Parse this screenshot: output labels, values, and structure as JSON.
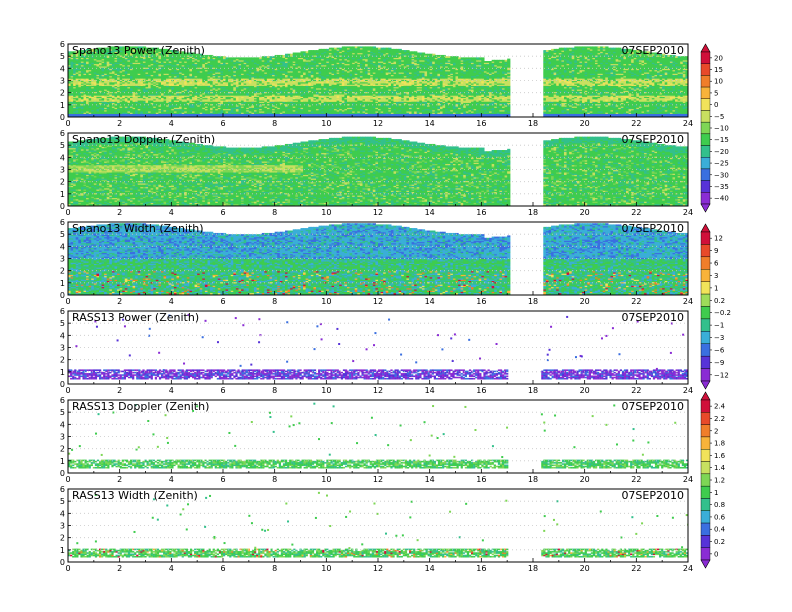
{
  "page": {
    "date_label": "07SEP2010"
  },
  "chart_data": [
    {
      "type": "heatmap",
      "title": "Spano13 Power (Zenith)",
      "date": "07SEP2010",
      "xlim": [
        0,
        24
      ],
      "ylim": [
        0,
        6
      ],
      "x_ticks": [
        "0",
        "2",
        "4",
        "6",
        "8",
        "10",
        "12",
        "14",
        "16",
        "18",
        "20",
        "22",
        "24"
      ],
      "y_ticks": [
        "0",
        "1",
        "2",
        "3",
        "4",
        "5",
        "6"
      ],
      "data_gap": [
        17,
        18.3
      ],
      "top_of_data_km": 5.3,
      "dominant": "green",
      "scale": "A",
      "notes": "broad green field with yellow layers between 1 and 4 km"
    },
    {
      "type": "heatmap",
      "title": "Spano13 Doppler (Zenith)",
      "date": "07SEP2010",
      "xlim": [
        0,
        24
      ],
      "ylim": [
        0,
        6
      ],
      "x_ticks": [
        "0",
        "2",
        "4",
        "6",
        "8",
        "10",
        "12",
        "14",
        "16",
        "18",
        "20",
        "22",
        "24"
      ],
      "y_ticks": [
        "0",
        "1",
        "2",
        "3",
        "4",
        "5",
        "6"
      ],
      "data_gap": [
        17,
        18.3
      ],
      "top_of_data_km": 5.2,
      "dominant": "green",
      "scale": "A"
    },
    {
      "type": "heatmap",
      "title": "Spano13 Width (Zenith)",
      "date": "07SEP2010",
      "xlim": [
        0,
        24
      ],
      "ylim": [
        0,
        6
      ],
      "x_ticks": [
        "0",
        "2",
        "4",
        "6",
        "8",
        "10",
        "12",
        "14",
        "16",
        "18",
        "20",
        "22",
        "24"
      ],
      "y_ticks": [
        "0",
        "1",
        "2",
        "3",
        "4",
        "5",
        "6"
      ],
      "data_gap": [
        17,
        18.3
      ],
      "top_of_data_km": 5.4,
      "dominant": "blue/green",
      "scale": "B",
      "notes": "red/orange cells near 0.5–2 km"
    },
    {
      "type": "heatmap",
      "title": "RASS13 Power (Zenith)",
      "date": "07SEP2010",
      "xlim": [
        0,
        24
      ],
      "ylim": [
        0,
        6
      ],
      "x_ticks": [
        "0",
        "2",
        "4",
        "6",
        "8",
        "10",
        "12",
        "14",
        "16",
        "18",
        "20",
        "22",
        "24"
      ],
      "y_ticks": [
        "0",
        "1",
        "2",
        "3",
        "4",
        "5",
        "6"
      ],
      "data_gap": [
        17,
        18.3
      ],
      "band_km": [
        0.4,
        1.1
      ],
      "dominant": "purple",
      "scale": "B"
    },
    {
      "type": "heatmap",
      "title": "RASS13 Doppler (Zenith)",
      "date": "07SEP2010",
      "xlim": [
        0,
        24
      ],
      "ylim": [
        0,
        6
      ],
      "x_ticks": [
        "0",
        "2",
        "4",
        "6",
        "8",
        "10",
        "12",
        "14",
        "16",
        "18",
        "20",
        "22",
        "24"
      ],
      "y_ticks": [
        "0",
        "1",
        "2",
        "3",
        "4",
        "5",
        "6"
      ],
      "data_gap": [
        17,
        18.3
      ],
      "band_km": [
        0.4,
        1.0
      ],
      "dominant": "green",
      "scale": "C"
    },
    {
      "type": "heatmap",
      "title": "RASS13 Width (Zenith)",
      "date": "07SEP2010",
      "xlim": [
        0,
        24
      ],
      "ylim": [
        0,
        6
      ],
      "x_ticks": [
        "0",
        "2",
        "4",
        "6",
        "8",
        "10",
        "12",
        "14",
        "16",
        "18",
        "20",
        "22",
        "24"
      ],
      "y_ticks": [
        "0",
        "1",
        "2",
        "3",
        "4",
        "5",
        "6"
      ],
      "data_gap": [
        17,
        18.3
      ],
      "band_km": [
        0.4,
        1.0
      ],
      "dominant": "green",
      "scale": "C"
    }
  ],
  "colorbars": [
    {
      "id": "A",
      "labels": [
        "20",
        "15",
        "10",
        "5",
        "0",
        "−5",
        "−10",
        "−15",
        "−20",
        "−25",
        "−30",
        "−35",
        "−40"
      ],
      "colors": [
        "#d0103a",
        "#e84a2a",
        "#f07e2a",
        "#f8b33a",
        "#f1e35a",
        "#c8e060",
        "#7ed655",
        "#3fcc4e",
        "#33c08c",
        "#3aaed8",
        "#3a6fe0",
        "#5733d8",
        "#8a2cd4"
      ]
    },
    {
      "id": "B",
      "labels": [
        "12",
        "9",
        "6",
        "3",
        "1",
        "0.2",
        "−0.2",
        "−1",
        "−3",
        "−6",
        "−9",
        "−12"
      ],
      "colors": [
        "#d0103a",
        "#e84a2a",
        "#f07e2a",
        "#f8b33a",
        "#f1e35a",
        "#9ddc5a",
        "#3fcc4e",
        "#33c08c",
        "#3aaed8",
        "#3a6fe0",
        "#5733d8",
        "#8a2cd4"
      ]
    },
    {
      "id": "C",
      "labels": [
        "2.4",
        "2.2",
        "2",
        "1.8",
        "1.6",
        "1.4",
        "1.2",
        "1",
        "0.8",
        "0.6",
        "0.4",
        "0.2",
        "0"
      ],
      "colors": [
        "#d0103a",
        "#e84a2a",
        "#f07e2a",
        "#f8b33a",
        "#f1e35a",
        "#c8e060",
        "#7ed655",
        "#3fcc4e",
        "#33c08c",
        "#3aaed8",
        "#3a6fe0",
        "#5733d8",
        "#8a2cd4"
      ]
    }
  ]
}
